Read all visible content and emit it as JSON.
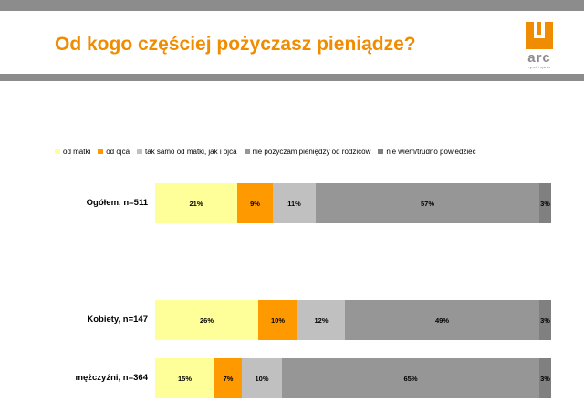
{
  "header": {
    "title": "Od kogo częściej pożyczasz pieniądze?",
    "logo_text": "arc",
    "logo_subtext": "rynek i opinia"
  },
  "colors": {
    "accent": "#f08c00",
    "bar_grey": "#8c8c8c",
    "series": [
      "#ffff99",
      "#ff9900",
      "#c0c0c0",
      "#969696",
      "#808080"
    ]
  },
  "chart_data": {
    "type": "bar",
    "orientation": "horizontal",
    "stacked": true,
    "title": "Od kogo częściej pożyczasz pieniądze?",
    "legend_placement": "top",
    "grid": false,
    "categories": [
      "Ogółem, n=511",
      "Kobiety, n=147",
      "mężczyźni, n=364"
    ],
    "series": [
      {
        "name": "od matki",
        "values": [
          21,
          26,
          15
        ]
      },
      {
        "name": "od ojca",
        "values": [
          9,
          10,
          7
        ]
      },
      {
        "name": "tak samo od matki, jak i ojca",
        "values": [
          11,
          12,
          10
        ]
      },
      {
        "name": "nie pożyczam pieniędzy od rodziców",
        "values": [
          57,
          49,
          65
        ]
      },
      {
        "name": "nie wiem/trudno powiedzieć",
        "values": [
          3,
          3,
          3
        ]
      }
    ],
    "value_suffix": "%"
  }
}
